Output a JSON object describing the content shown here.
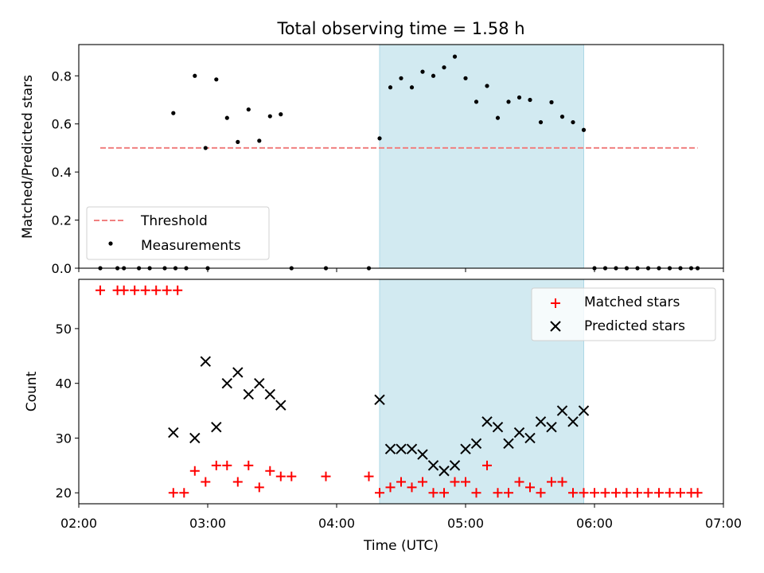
{
  "chart_data": [
    {
      "type": "scatter",
      "title": "Total observing time = 1.58 h",
      "xlabel": "",
      "ylabel": "Matched/Predicted stars",
      "xlim": [
        "02:00",
        "07:00"
      ],
      "ylim": [
        0,
        0.93
      ],
      "yticks": [
        0.0,
        0.2,
        0.4,
        0.6,
        0.8
      ],
      "ytick_labels": [
        "0.0",
        "0.2",
        "0.4",
        "0.6",
        "0.8"
      ],
      "shaded_interval": [
        "04:20",
        "05:55"
      ],
      "threshold": {
        "name": "Threshold",
        "y": 0.5,
        "x_range": [
          "02:10",
          "06:48"
        ],
        "color": "#f08080",
        "style": "dashed"
      },
      "series": [
        {
          "name": "Measurements",
          "color": "#000000",
          "points": [
            [
              "02:10",
              0
            ],
            [
              "02:18",
              0
            ],
            [
              "02:21",
              0
            ],
            [
              "02:28",
              0
            ],
            [
              "02:33",
              0
            ],
            [
              "02:40",
              0
            ],
            [
              "02:45",
              0
            ],
            [
              "02:50",
              0
            ],
            [
              "03:00",
              0
            ],
            [
              "02:44",
              0.645
            ],
            [
              "02:54",
              0.8
            ],
            [
              "02:59",
              0.5
            ],
            [
              "03:04",
              0.785
            ],
            [
              "03:09",
              0.625
            ],
            [
              "03:14",
              0.525
            ],
            [
              "03:19",
              0.66
            ],
            [
              "03:24",
              0.53
            ],
            [
              "03:29",
              0.632
            ],
            [
              "03:34",
              0.64
            ],
            [
              "03:39",
              0
            ],
            [
              "03:55",
              0
            ],
            [
              "04:15",
              0
            ],
            [
              "04:20",
              0.54
            ],
            [
              "04:25",
              0.752
            ],
            [
              "04:30",
              0.79
            ],
            [
              "04:35",
              0.752
            ],
            [
              "04:40",
              0.817
            ],
            [
              "04:45",
              0.8
            ],
            [
              "04:50",
              0.835
            ],
            [
              "04:55",
              0.88
            ],
            [
              "05:00",
              0.79
            ],
            [
              "05:05",
              0.692
            ],
            [
              "05:10",
              0.758
            ],
            [
              "05:15",
              0.625
            ],
            [
              "05:20",
              0.692
            ],
            [
              "05:25",
              0.71
            ],
            [
              "05:30",
              0.7
            ],
            [
              "05:35",
              0.607
            ],
            [
              "05:40",
              0.69
            ],
            [
              "05:45",
              0.63
            ],
            [
              "05:50",
              0.607
            ],
            [
              "05:55",
              0.575
            ],
            [
              "06:00",
              0
            ],
            [
              "06:05",
              0
            ],
            [
              "06:10",
              0
            ],
            [
              "06:15",
              0
            ],
            [
              "06:20",
              0
            ],
            [
              "06:25",
              0
            ],
            [
              "06:30",
              0
            ],
            [
              "06:35",
              0
            ],
            [
              "06:40",
              0
            ],
            [
              "06:45",
              0
            ],
            [
              "06:48",
              0
            ]
          ]
        }
      ],
      "legend": {
        "placement": "lower-left",
        "entries": [
          "Threshold",
          "Measurements"
        ]
      }
    },
    {
      "type": "scatter",
      "title": "",
      "xlabel": "Time (UTC)",
      "ylabel": "Count",
      "xlim": [
        "02:00",
        "07:00"
      ],
      "xticks": [
        "02:00",
        "03:00",
        "04:00",
        "05:00",
        "06:00",
        "07:00"
      ],
      "ylim": [
        18,
        59
      ],
      "yticks": [
        20,
        30,
        40,
        50
      ],
      "ytick_labels": [
        "20",
        "30",
        "40",
        "50"
      ],
      "shaded_interval": [
        "04:20",
        "05:55"
      ],
      "series": [
        {
          "name": "Matched stars",
          "marker": "plus",
          "color": "#ff0000",
          "points": [
            [
              "02:10",
              57
            ],
            [
              "02:18",
              57
            ],
            [
              "02:21",
              57
            ],
            [
              "02:26",
              57
            ],
            [
              "02:31",
              57
            ],
            [
              "02:36",
              57
            ],
            [
              "02:41",
              57
            ],
            [
              "02:46",
              57
            ],
            [
              "02:44",
              20
            ],
            [
              "02:49",
              20
            ],
            [
              "02:54",
              24
            ],
            [
              "02:59",
              22
            ],
            [
              "03:04",
              25
            ],
            [
              "03:09",
              25
            ],
            [
              "03:14",
              22
            ],
            [
              "03:19",
              25
            ],
            [
              "03:24",
              21
            ],
            [
              "03:29",
              24
            ],
            [
              "03:34",
              23
            ],
            [
              "03:39",
              23
            ],
            [
              "03:55",
              23
            ],
            [
              "04:15",
              23
            ],
            [
              "04:20",
              20
            ],
            [
              "04:25",
              21
            ],
            [
              "04:30",
              22
            ],
            [
              "04:35",
              21
            ],
            [
              "04:40",
              22
            ],
            [
              "04:45",
              20
            ],
            [
              "04:50",
              20
            ],
            [
              "04:55",
              22
            ],
            [
              "05:00",
              22
            ],
            [
              "05:05",
              20
            ],
            [
              "05:10",
              25
            ],
            [
              "05:15",
              20
            ],
            [
              "05:20",
              20
            ],
            [
              "05:25",
              22
            ],
            [
              "05:30",
              21
            ],
            [
              "05:35",
              20
            ],
            [
              "05:40",
              22
            ],
            [
              "05:45",
              22
            ],
            [
              "05:50",
              20
            ],
            [
              "05:55",
              20
            ],
            [
              "06:00",
              20
            ],
            [
              "06:05",
              20
            ],
            [
              "06:10",
              20
            ],
            [
              "06:15",
              20
            ],
            [
              "06:20",
              20
            ],
            [
              "06:25",
              20
            ],
            [
              "06:30",
              20
            ],
            [
              "06:35",
              20
            ],
            [
              "06:40",
              20
            ],
            [
              "06:45",
              20
            ],
            [
              "06:48",
              20
            ]
          ]
        },
        {
          "name": "Predicted stars",
          "marker": "x",
          "color": "#000000",
          "points": [
            [
              "02:44",
              31
            ],
            [
              "02:54",
              30
            ],
            [
              "02:59",
              44
            ],
            [
              "03:04",
              32
            ],
            [
              "03:09",
              40
            ],
            [
              "03:14",
              42
            ],
            [
              "03:19",
              38
            ],
            [
              "03:24",
              40
            ],
            [
              "03:29",
              38
            ],
            [
              "03:34",
              36
            ],
            [
              "04:20",
              37
            ],
            [
              "04:25",
              28
            ],
            [
              "04:30",
              28
            ],
            [
              "04:35",
              28
            ],
            [
              "04:40",
              27
            ],
            [
              "04:45",
              25
            ],
            [
              "04:50",
              24
            ],
            [
              "04:55",
              25
            ],
            [
              "05:00",
              28
            ],
            [
              "05:05",
              29
            ],
            [
              "05:10",
              33
            ],
            [
              "05:15",
              32
            ],
            [
              "05:20",
              29
            ],
            [
              "05:25",
              31
            ],
            [
              "05:30",
              30
            ],
            [
              "05:35",
              33
            ],
            [
              "05:40",
              32
            ],
            [
              "05:45",
              35
            ],
            [
              "05:50",
              33
            ],
            [
              "05:55",
              35
            ]
          ]
        }
      ],
      "legend": {
        "placement": "top-right",
        "entries": [
          "Matched stars",
          "Predicted stars"
        ]
      }
    }
  ],
  "colors": {
    "shade": "#add8e6",
    "threshold": "#f08080",
    "matched": "#ff0000",
    "predicted": "#000000"
  }
}
